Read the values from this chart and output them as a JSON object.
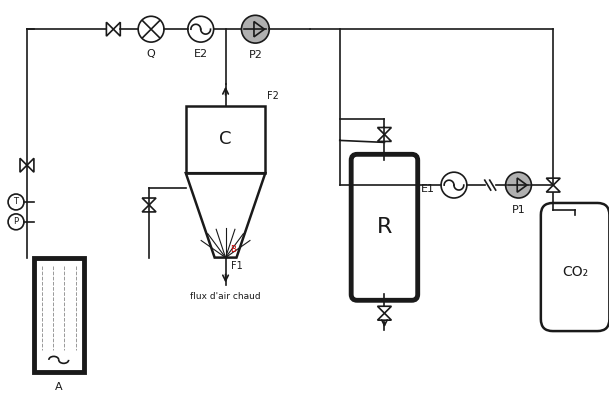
{
  "bg_color": "#ffffff",
  "line_color": "#1a1a1a",
  "thick_lw": 3.5,
  "med_lw": 1.8,
  "thin_lw": 1.2,
  "lgray": "#b0b0b0",
  "fig_width": 6.11,
  "fig_height": 3.99,
  "dpi": 100,
  "labels": {
    "Q": "Q",
    "E2": "E2",
    "P2": "P2",
    "E1": "E1",
    "P1": "P1",
    "C": "C",
    "R": "R",
    "CO2": "CO₂",
    "T": "T",
    "P_inst": "P",
    "A": "A",
    "F1": "F1",
    "F2": "F2",
    "flux": "flux d'air chaud"
  }
}
